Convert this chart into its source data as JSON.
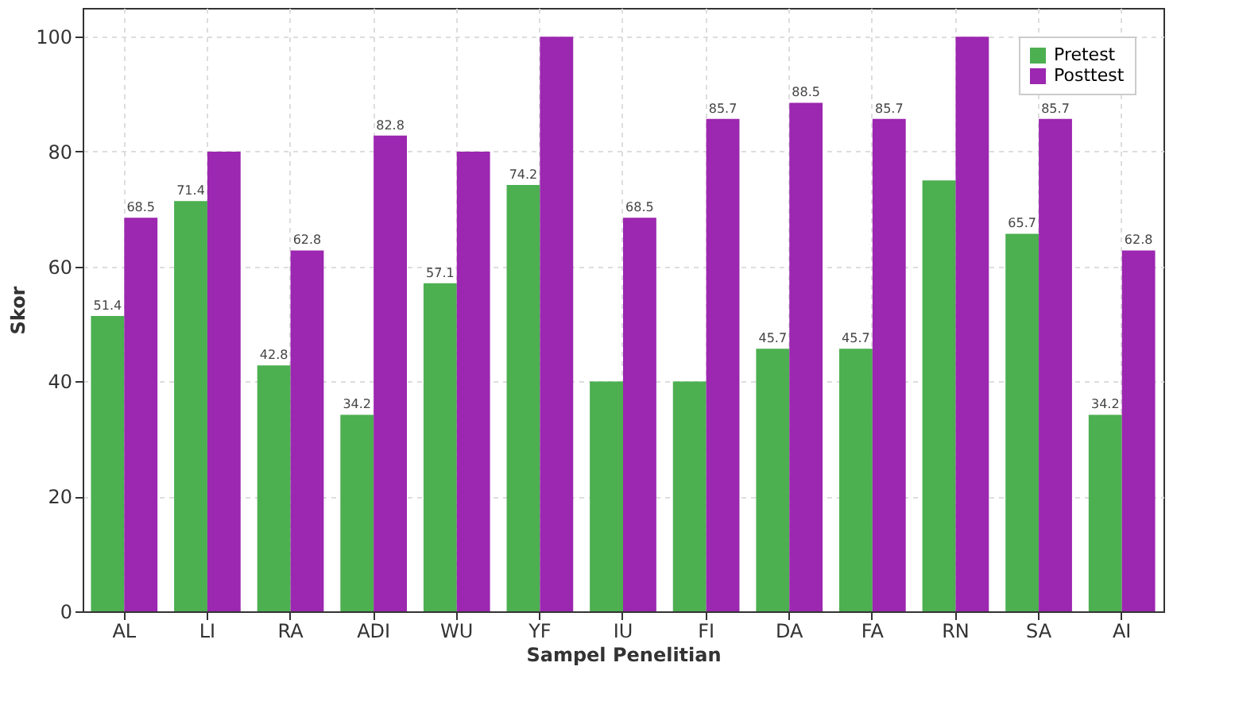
{
  "chart_data": {
    "type": "bar",
    "xlabel": "Sampel Penelitian",
    "ylabel": "Skor",
    "categories": [
      "AL",
      "LI",
      "RA",
      "ADI",
      "WU",
      "YF",
      "IU",
      "FI",
      "DA",
      "FA",
      "RN",
      "SA",
      "AI"
    ],
    "series": [
      {
        "name": "Pretest",
        "color": "#4caf50",
        "values": [
          51.4,
          71.4,
          42.8,
          34.2,
          57.1,
          74.2,
          40,
          40,
          45.7,
          45.7,
          75,
          65.7,
          34.2
        ],
        "value_labels": [
          "51.4",
          "71.4",
          "42.8",
          "34.2",
          "57.1",
          "74.2",
          null,
          null,
          "45.7",
          "45.7",
          null,
          "65.7",
          "34.2"
        ]
      },
      {
        "name": "Posttest",
        "color": "#9c27b0",
        "values": [
          68.5,
          80,
          62.8,
          82.8,
          80,
          100,
          68.5,
          85.7,
          88.5,
          85.7,
          100,
          85.7,
          62.8
        ],
        "value_labels": [
          "68.5",
          null,
          "62.8",
          "82.8",
          null,
          null,
          "68.5",
          "85.7",
          "88.5",
          "85.7",
          null,
          "85.7",
          "62.8"
        ]
      }
    ],
    "ylim": [
      0,
      105
    ],
    "yticks": [
      0,
      20,
      40,
      60,
      80,
      100
    ],
    "grid": true,
    "legend": "top right"
  }
}
